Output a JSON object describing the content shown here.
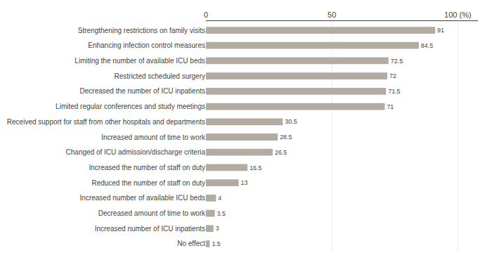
{
  "chart_data": {
    "type": "bar",
    "orientation": "horizontal",
    "categories": [
      "No effect",
      "Increased number of ICU inpatients",
      "Decreased amount of time to work",
      "Increased number of available ICU beds",
      "Reduced the number of staff on duty",
      "Increased the number of staff on duty",
      "Changed of ICU admission/discharge criteria",
      "Increased amount of time to work",
      "Received support for staff from other hospitals and departments",
      "Limited regular conferences and study meetings",
      "Decreased the number of ICU inpatients",
      "Restricted scheduled surgery",
      "Limiting the number of available ICU beds",
      "Enhancing infection control measures",
      "Strengthening restrictions on family visits"
    ],
    "values": [
      1.5,
      3,
      3.5,
      4,
      13,
      16.5,
      26.5,
      28.5,
      30.5,
      71,
      71.5,
      72,
      72.5,
      84.5,
      91
    ],
    "color": "#b2aba2",
    "xlim": [
      0,
      108
    ],
    "xticks": [
      0,
      50,
      {
        "value": 100,
        "label": "100 (%)"
      }
    ],
    "grid": true,
    "data_labels": true
  }
}
